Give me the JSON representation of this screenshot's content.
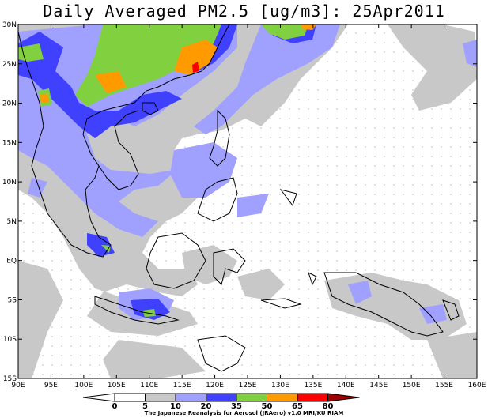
{
  "title": "Daily Averaged PM2.5 [ug/m3]: 25Apr2011",
  "footer": "The Japanese Reanalysis for Aerosol (JRAero) v1.0 MRI/KU RIAM",
  "lat_labels": [
    "30N",
    "25N",
    "20N",
    "15N",
    "10N",
    "5N",
    "EQ",
    "5S",
    "10S",
    "15S"
  ],
  "lon_labels": [
    "90E",
    "95E",
    "100E",
    "105E",
    "110E",
    "115E",
    "120E",
    "125E",
    "130E",
    "135E",
    "140E",
    "145E",
    "150E",
    "155E",
    "160E"
  ],
  "colorbar": {
    "levels": [
      "0",
      "5",
      "10",
      "20",
      "35",
      "50",
      "65",
      "80"
    ],
    "colors": [
      "#ffffff",
      "#ffffff",
      "#c8c8c8",
      "#a0a0ff",
      "#4040ff",
      "#80d040",
      "#ff9a00",
      "#ff0000",
      "#a00000"
    ]
  },
  "map_extent": {
    "lon": [
      90,
      160
    ],
    "lat": [
      -15,
      30
    ]
  }
}
